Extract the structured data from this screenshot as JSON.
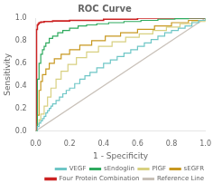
{
  "chart_data": {
    "type": "line",
    "title": "ROC Curve",
    "xlabel": "1 - Specificity",
    "ylabel": "Sensitivity",
    "xlim": [
      0.0,
      1.0
    ],
    "ylim": [
      0.0,
      1.0
    ],
    "xticks": [
      {
        "value": 0.0,
        "label": "0.0"
      },
      0.2,
      0.4,
      0.6,
      0.8,
      {
        "value": 1.0,
        "label": "1.0"
      }
    ],
    "yticks": [
      {
        "value": 0.0,
        "label": "0.0"
      },
      0.2,
      0.4,
      0.6,
      0.8,
      {
        "value": 1.0,
        "label": "1.0"
      }
    ],
    "grid": false,
    "legend": "lower right",
    "series": [
      {
        "name": "VEGF",
        "type": "step",
        "color": "#6ec6c6",
        "x": [
          0.0,
          0.01,
          0.02,
          0.03,
          0.04,
          0.05,
          0.06,
          0.07,
          0.08,
          0.09,
          0.1,
          0.12,
          0.14,
          0.16,
          0.18,
          0.2,
          0.23,
          0.26,
          0.29,
          0.32,
          0.36,
          0.4,
          0.44,
          0.48,
          0.52,
          0.56,
          0.6,
          0.64,
          0.68,
          0.72,
          0.76,
          0.8,
          0.84,
          0.88,
          0.92,
          0.96,
          1.0
        ],
        "values": [
          0.0,
          0.04,
          0.07,
          0.09,
          0.11,
          0.13,
          0.16,
          0.18,
          0.2,
          0.22,
          0.24,
          0.27,
          0.3,
          0.33,
          0.36,
          0.38,
          0.42,
          0.46,
          0.49,
          0.52,
          0.56,
          0.6,
          0.63,
          0.66,
          0.69,
          0.72,
          0.75,
          0.78,
          0.81,
          0.84,
          0.87,
          0.89,
          0.91,
          0.93,
          0.96,
          0.98,
          1.0
        ]
      },
      {
        "name": "sEndoglin",
        "type": "step",
        "color": "#2eaa5e",
        "x": [
          0.0,
          0.01,
          0.02,
          0.03,
          0.04,
          0.05,
          0.06,
          0.08,
          0.1,
          0.13,
          0.16,
          0.2,
          0.25,
          0.3,
          0.36,
          0.43,
          0.52,
          0.62,
          0.72,
          0.82,
          0.9,
          1.0
        ],
        "values": [
          0.0,
          0.46,
          0.6,
          0.68,
          0.72,
          0.75,
          0.78,
          0.82,
          0.84,
          0.87,
          0.89,
          0.91,
          0.93,
          0.94,
          0.95,
          0.96,
          0.97,
          0.98,
          0.99,
          0.995,
          1.0,
          1.0
        ]
      },
      {
        "name": "PlGF",
        "type": "step",
        "color": "#d8d080",
        "x": [
          0.0,
          0.01,
          0.02,
          0.03,
          0.05,
          0.07,
          0.09,
          0.12,
          0.15,
          0.19,
          0.24,
          0.3,
          0.37,
          0.45,
          0.53,
          0.61,
          0.69,
          0.77,
          0.85,
          0.92,
          1.0
        ],
        "values": [
          0.0,
          0.06,
          0.1,
          0.15,
          0.22,
          0.3,
          0.38,
          0.46,
          0.53,
          0.59,
          0.65,
          0.7,
          0.75,
          0.79,
          0.83,
          0.86,
          0.89,
          0.92,
          0.95,
          0.97,
          1.0
        ]
      },
      {
        "name": "sEGFR",
        "type": "step",
        "color": "#c89820",
        "x": [
          0.0,
          0.01,
          0.02,
          0.03,
          0.04,
          0.06,
          0.08,
          0.11,
          0.15,
          0.2,
          0.26,
          0.33,
          0.41,
          0.5,
          0.6,
          0.7,
          0.8,
          0.9,
          1.0
        ],
        "values": [
          0.0,
          0.14,
          0.36,
          0.44,
          0.5,
          0.55,
          0.6,
          0.64,
          0.68,
          0.72,
          0.76,
          0.8,
          0.84,
          0.87,
          0.9,
          0.93,
          0.96,
          0.98,
          1.0
        ]
      },
      {
        "name": "Four Protein Combination",
        "type": "step",
        "color": "#cc2222",
        "x": [
          0.0,
          0.005,
          0.01,
          0.015,
          0.02,
          0.03,
          0.05,
          0.1,
          0.2,
          0.4,
          0.6,
          0.8,
          1.0
        ],
        "values": [
          0.0,
          0.9,
          0.94,
          0.95,
          0.96,
          0.965,
          0.97,
          0.975,
          0.98,
          0.99,
          1.0,
          1.0,
          1.0
        ]
      },
      {
        "name": "Reference Line",
        "type": "line",
        "color": "#c8c0b8",
        "x": [
          0,
          1
        ],
        "values": [
          0,
          1
        ]
      }
    ]
  }
}
